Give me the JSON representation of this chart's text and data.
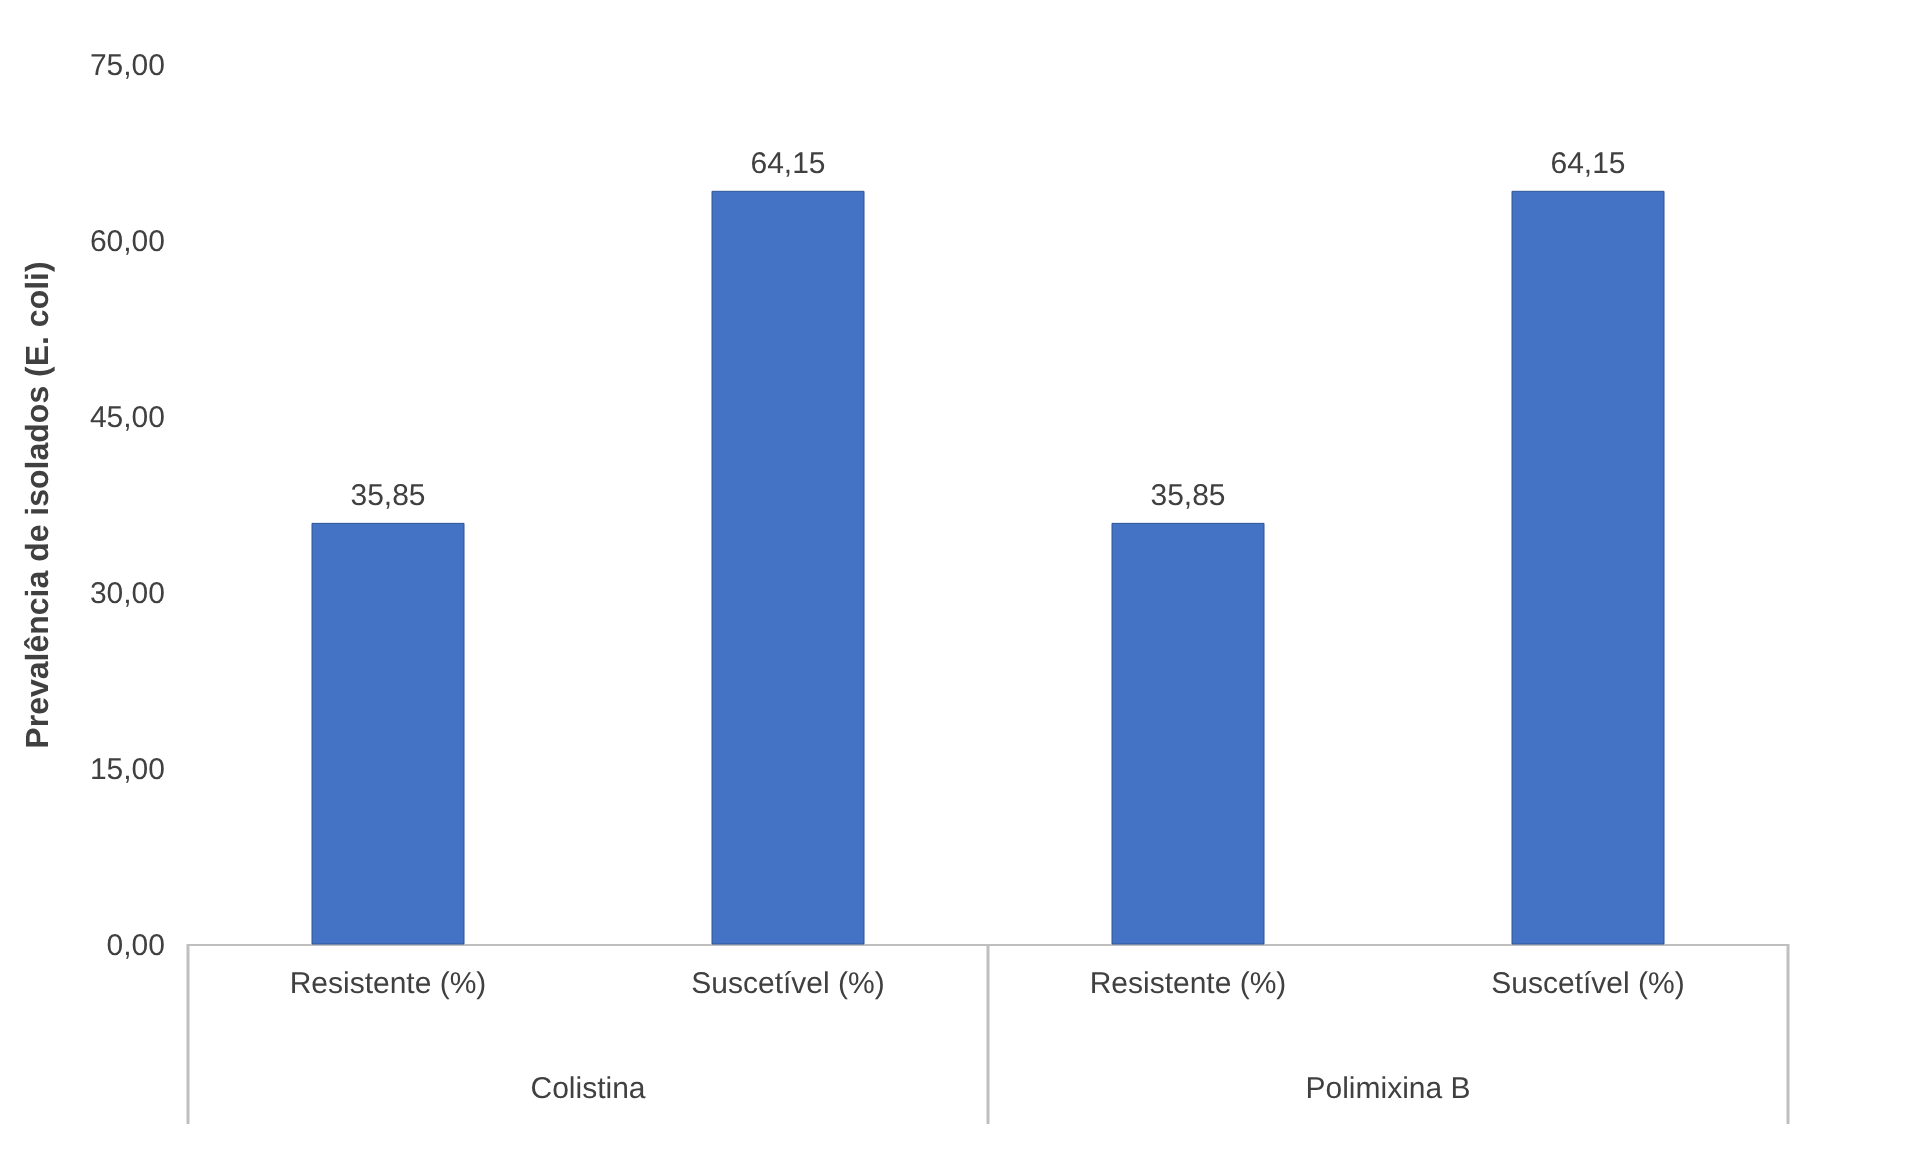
{
  "chart_data": {
    "type": "bar",
    "ylabel": "Prevalência de isolados (E. coli)",
    "categories": [
      "Resistente (%)",
      "Suscetível (%)",
      "Resistente (%)",
      "Suscetível (%)"
    ],
    "values": [
      35.85,
      64.15,
      35.85,
      64.15
    ],
    "value_labels": [
      "35,85",
      "64,15",
      "35,85",
      "64,15"
    ],
    "color": "#4472c4",
    "ylim": [
      0,
      75
    ],
    "yticks": [
      {
        "value": 0,
        "label": "0,00"
      },
      {
        "value": 15,
        "label": "15,00"
      },
      {
        "value": 30,
        "label": "30,00"
      },
      {
        "value": 45,
        "label": "45,00"
      },
      {
        "value": 60,
        "label": "60,00"
      },
      {
        "value": 75,
        "label": "75,00"
      }
    ],
    "grid": false,
    "annotations": [
      "Colistina",
      "Polimixina B"
    ]
  }
}
